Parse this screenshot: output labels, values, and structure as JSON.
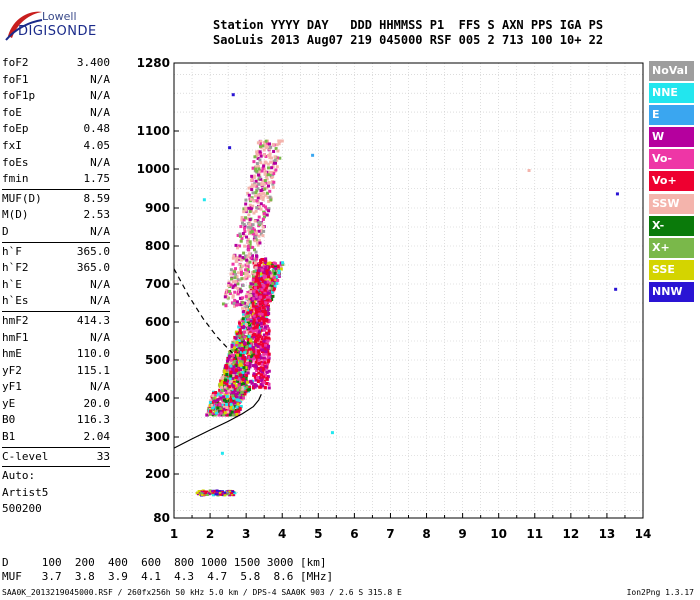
{
  "logo": {
    "top": "Lowell",
    "main": "DIGISONDE"
  },
  "header": {
    "line1": "Station YYYY DAY   DDD HHMMSS P1  FFS S AXN PPS IGA PS",
    "line2": "SaoLuis 2013 Aug07 219 045000 RSF 005 2 713 100 10+ 22"
  },
  "params": {
    "group1": [
      {
        "label": "foF2",
        "value": "3.400"
      },
      {
        "label": "foF1",
        "value": "N/A"
      },
      {
        "label": "foF1p",
        "value": "N/A"
      },
      {
        "label": "foE",
        "value": "N/A"
      },
      {
        "label": "foEp",
        "value": "0.48"
      },
      {
        "label": "fxI",
        "value": "4.05"
      },
      {
        "label": "foEs",
        "value": "N/A"
      },
      {
        "label": "fmin",
        "value": "1.75"
      }
    ],
    "group2": [
      {
        "label": "MUF(D)",
        "value": "8.59"
      },
      {
        "label": "M(D)",
        "value": "2.53"
      },
      {
        "label": "D",
        "value": "N/A"
      }
    ],
    "group3": [
      {
        "label": "h`F",
        "value": "365.0"
      },
      {
        "label": "h`F2",
        "value": "365.0"
      },
      {
        "label": "h`E",
        "value": "N/A"
      },
      {
        "label": "h`Es",
        "value": "N/A"
      }
    ],
    "group4": [
      {
        "label": "hmF2",
        "value": "414.3"
      },
      {
        "label": "hmF1",
        "value": "N/A"
      },
      {
        "label": "hmE",
        "value": "110.0"
      },
      {
        "label": "yF2",
        "value": "115.1"
      },
      {
        "label": "yF1",
        "value": "N/A"
      },
      {
        "label": "yE",
        "value": "20.0"
      },
      {
        "label": "B0",
        "value": "116.3"
      },
      {
        "label": "B1",
        "value": "2.04"
      }
    ],
    "clevel": {
      "label": "C-level",
      "value": "33"
    },
    "auto": [
      "Auto:",
      "Artist5",
      "500200"
    ]
  },
  "legend": [
    {
      "name": "NoVal",
      "color": "#9e9e9e"
    },
    {
      "name": "NNE",
      "color": "#22e6ee"
    },
    {
      "name": "E",
      "color": "#3aa6f0"
    },
    {
      "name": "W",
      "color": "#b5009e"
    },
    {
      "name": "Vo-",
      "color": "#ee36a6"
    },
    {
      "name": "Vo+",
      "color": "#ee0030"
    },
    {
      "name": "SSW",
      "color": "#f4b4ac"
    },
    {
      "name": "X-",
      "color": "#0a7a0a"
    },
    {
      "name": "X+",
      "color": "#7ab84a"
    },
    {
      "name": "SSE",
      "color": "#d4d400"
    },
    {
      "name": "NNW",
      "color": "#2a14d4"
    }
  ],
  "chart_data": {
    "type": "scatter",
    "xlim": [
      1,
      14
    ],
    "x_ticks": [
      "1",
      "2",
      "3",
      "4",
      "5",
      "6",
      "7",
      "8",
      "9",
      "10",
      "11",
      "12",
      "13",
      "14"
    ],
    "y_ticks": [
      "80",
      "200",
      "300",
      "400",
      "500",
      "600",
      "700",
      "800",
      "900",
      "1000",
      "1100",
      "1280"
    ],
    "grid": true,
    "trace_regions": [
      {
        "name": "F-trace",
        "x_range": [
          1.8,
          3.5
        ],
        "y_range": [
          360,
          760
        ]
      },
      {
        "name": "F-trace upper",
        "x_range": [
          2.3,
          3.7
        ],
        "y_range": [
          700,
          1080
        ]
      },
      {
        "name": "E/Es trace",
        "x_range": [
          1.6,
          2.6
        ],
        "y_range": [
          145,
          160
        ]
      }
    ],
    "profile_line": [
      [
        1.0,
        270
      ],
      [
        1.5,
        295
      ],
      [
        2.0,
        318
      ],
      [
        2.5,
        340
      ],
      [
        2.9,
        360
      ],
      [
        3.2,
        378
      ],
      [
        3.35,
        395
      ],
      [
        3.42,
        410
      ]
    ],
    "dashed_line": [
      [
        1.0,
        740
      ],
      [
        1.4,
        670
      ],
      [
        1.8,
        610
      ],
      [
        2.2,
        560
      ],
      [
        2.5,
        530
      ],
      [
        2.6,
        520
      ]
    ],
    "isolated_points": [
      {
        "x": 2.6,
        "y": 1200,
        "color": "#2a14d4"
      },
      {
        "x": 2.5,
        "y": 1060,
        "color": "#2a14d4"
      },
      {
        "x": 4.8,
        "y": 1040,
        "color": "#3aa6f0"
      },
      {
        "x": 1.8,
        "y": 925,
        "color": "#22e6ee"
      },
      {
        "x": 5.35,
        "y": 315,
        "color": "#22e6ee"
      },
      {
        "x": 10.8,
        "y": 1000,
        "color": "#f4b4ac"
      },
      {
        "x": 13.25,
        "y": 940,
        "color": "#2a14d4"
      },
      {
        "x": 13.2,
        "y": 690,
        "color": "#2a14d4"
      },
      {
        "x": 2.3,
        "y": 260,
        "color": "#22e6ee"
      }
    ]
  },
  "footer": {
    "line1": "D     100  200  400  600  800 1000 1500 3000 [km]",
    "line2": "MUF   3.7  3.8  3.9  4.1  4.3  4.7  5.8  8.6 [MHz]",
    "note": "SAA0K_2013219045000.RSF / 260fx256h 50 kHz 5.0 km / DPS-4 SAA0K 903 / 2.6 S 315.8 E",
    "version": "Ion2Png 1.3.17"
  }
}
